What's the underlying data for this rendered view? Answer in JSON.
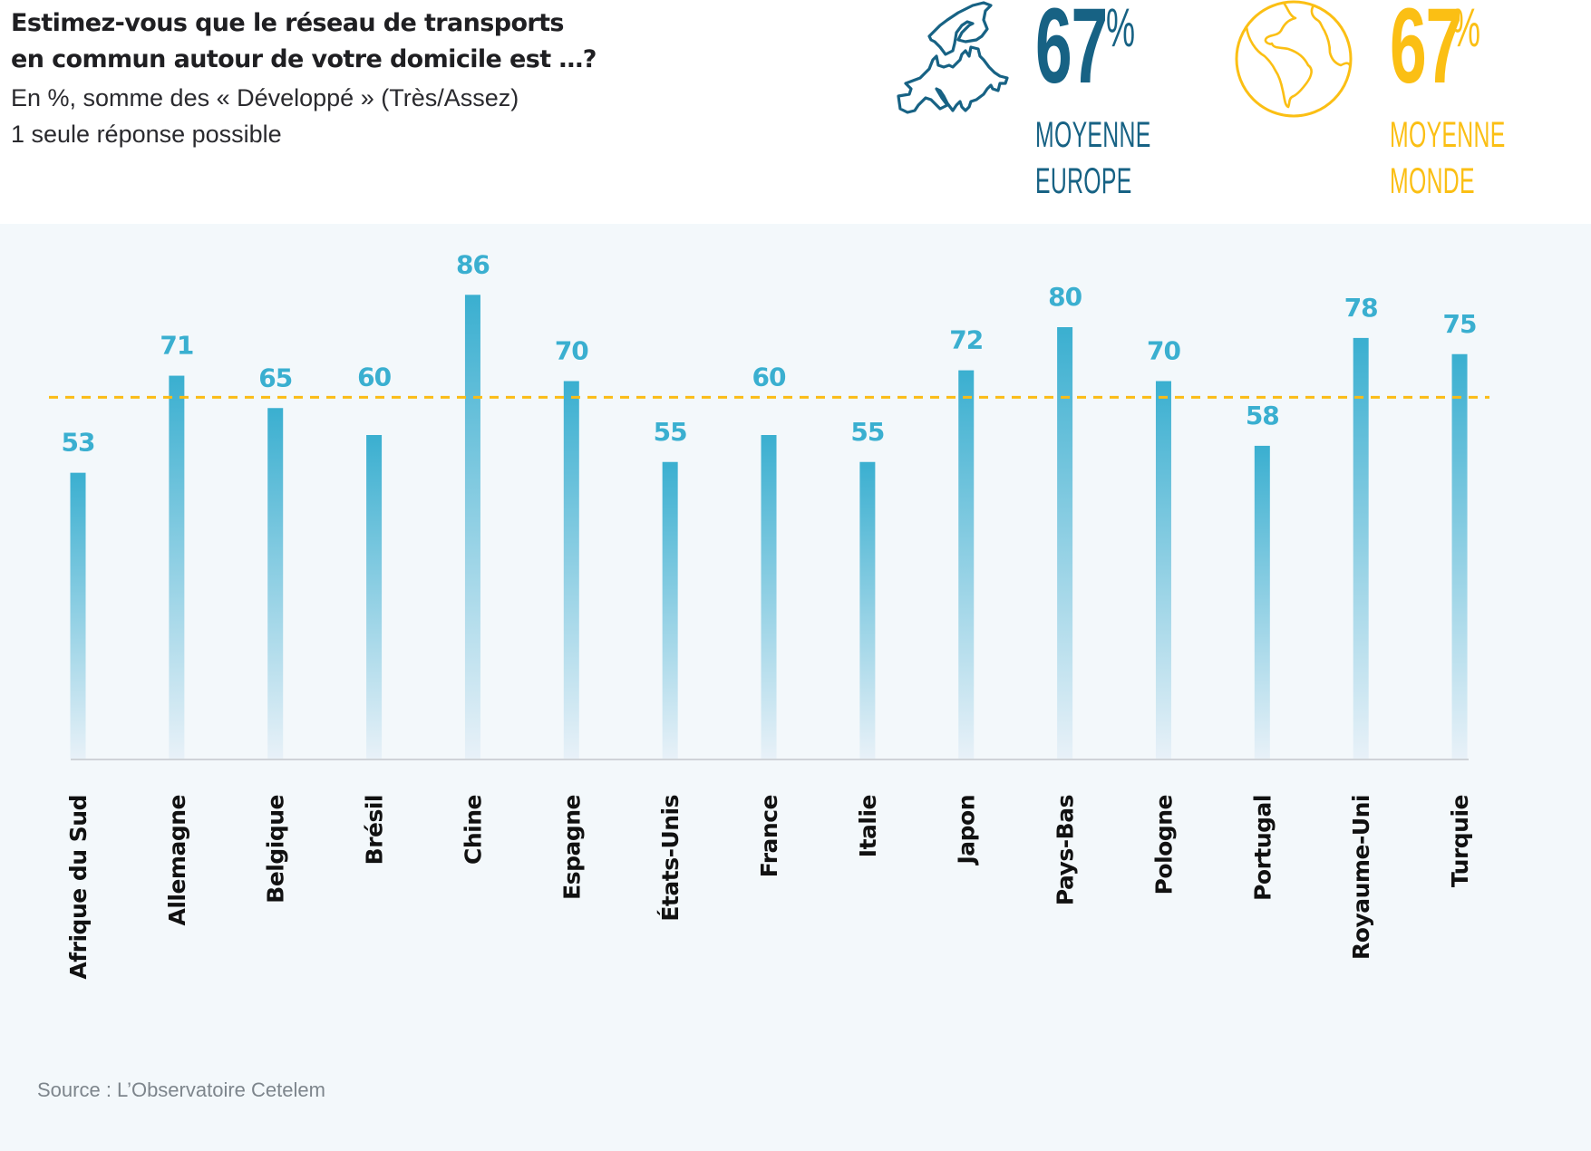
{
  "header": {
    "title_lines": [
      "Estimez-vous que le réseau de transports",
      "en commun autour de votre domicile est …?"
    ],
    "subtitle_lines": [
      "En %, somme des « Développé » (Très/Assez)",
      "1 seule réponse possible"
    ]
  },
  "stats": {
    "europe": {
      "icon": "europe-map-icon",
      "value": "67",
      "unit": "%",
      "caption_lines": [
        "MOYENNE",
        "EUROPE"
      ],
      "color": "#176284"
    },
    "world": {
      "icon": "globe-icon",
      "value": "67",
      "unit": "%",
      "caption_lines": [
        "MOYENNE",
        "MONDE"
      ],
      "color": "#fbbf14"
    }
  },
  "source": "Source : L’Observatoire Cetelem",
  "chart_data": {
    "type": "bar",
    "title": "Estimez-vous que le réseau de transports en commun autour de votre domicile est …?",
    "subtitle": "En %, somme des « Développé » (Très/Assez) — 1 seule réponse possible",
    "xlabel": "",
    "ylabel": "",
    "ylim": [
      0,
      86
    ],
    "grid": false,
    "categories": [
      "Afrique du Sud",
      "Allemagne",
      "Belgique",
      "Brésil",
      "Chine",
      "Espagne",
      "États-Unis",
      "France",
      "Italie",
      "Japon",
      "Pays-Bas",
      "Pologne",
      "Portugal",
      "Royaume-Uni",
      "Turquie"
    ],
    "values": [
      53,
      71,
      65,
      60,
      86,
      70,
      55,
      60,
      55,
      72,
      80,
      70,
      58,
      78,
      75
    ],
    "data_labels": true,
    "reference_lines": [
      {
        "name": "Moyenne Monde",
        "value": 67,
        "style": "dashed",
        "color": "#fbbc15"
      }
    ],
    "colors": {
      "bar_top": "#3aafd0",
      "bar_bottom": "#e8f1f8",
      "label": "#3aafd0",
      "axis": "#cfd3d8",
      "category_label": "#111111"
    }
  }
}
